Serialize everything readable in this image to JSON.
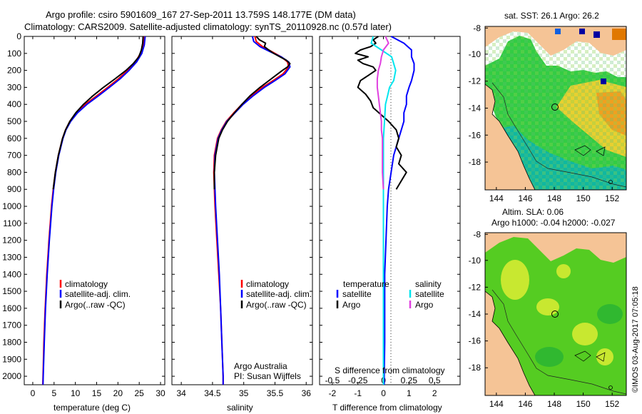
{
  "header": {
    "title_line1": "Argo profile: csiro 5901609_167 27-Sep-2011 13.759S 148.177E (DM data)",
    "title_line2": "Climatology: CARS2009. Satellite-adjusted climatology: synTS_20110928.nc (0.57d later)"
  },
  "colors": {
    "climatology": "#ff0000",
    "satellite": "#0000ff",
    "argo": "#000000",
    "satellite_salinity": "#00e5ee",
    "argo_salinity": "#e040e0",
    "land": "#f5c496",
    "sea_green": "#33cc33"
  },
  "chart_data": [
    {
      "type": "line",
      "id": "temperature",
      "xlabel": "temperature (deg C)",
      "xlim": [
        -2,
        31
      ],
      "xticks": [
        0,
        5,
        10,
        15,
        20,
        25,
        30
      ],
      "ylim": [
        2050,
        0
      ],
      "yticks": [
        0,
        100,
        200,
        300,
        400,
        500,
        600,
        700,
        800,
        900,
        1000,
        1100,
        1200,
        1300,
        1400,
        1500,
        1600,
        1700,
        1800,
        1900,
        2000
      ],
      "legend": [
        "climatology",
        "satellite-adj. clim.",
        "Argo(..raw -QC)"
      ],
      "series": [
        {
          "name": "climatology",
          "color": "#ff0000",
          "depth": [
            0,
            50,
            100,
            150,
            200,
            250,
            300,
            350,
            400,
            450,
            500,
            550,
            600,
            700,
            800,
            900,
            1000,
            1200,
            1400,
            1600,
            1800,
            2000,
            2050
          ],
          "values": [
            26.1,
            25.9,
            25.3,
            24.1,
            22.3,
            20.1,
            17.6,
            15.0,
            12.3,
            10.2,
            8.7,
            7.7,
            7.0,
            6.0,
            5.3,
            4.8,
            4.4,
            3.8,
            3.3,
            2.9,
            2.6,
            2.4,
            2.35
          ]
        },
        {
          "name": "satellite-adj. clim.",
          "color": "#0000ff",
          "depth": [
            0,
            50,
            100,
            150,
            200,
            250,
            300,
            350,
            400,
            450,
            500,
            550,
            600,
            700,
            800,
            900,
            1000,
            1200,
            1400,
            1600,
            1800,
            2000,
            2050
          ],
          "values": [
            26.4,
            26.2,
            25.6,
            24.4,
            22.6,
            20.5,
            18.0,
            15.4,
            12.7,
            10.5,
            8.9,
            7.8,
            7.1,
            6.1,
            5.4,
            4.9,
            4.5,
            3.9,
            3.4,
            3.0,
            2.7,
            2.45,
            2.4
          ]
        },
        {
          "name": "Argo(..raw -QC)",
          "color": "#000000",
          "depth": [
            0,
            40,
            80,
            120,
            160,
            200,
            250,
            300,
            350,
            400,
            450,
            500,
            550,
            600,
            700,
            800,
            900
          ],
          "values": [
            25.9,
            25.8,
            25.5,
            24.9,
            23.6,
            21.9,
            19.3,
            16.6,
            14.1,
            11.9,
            10.1,
            8.7,
            7.7,
            7.0,
            6.0,
            5.3,
            4.8
          ]
        }
      ]
    },
    {
      "type": "line",
      "id": "salinity",
      "xlabel": "salinity",
      "xlim": [
        33.85,
        36.1
      ],
      "xticks": [
        34,
        34.5,
        35,
        35.5,
        36
      ],
      "ylim": [
        2050,
        0
      ],
      "legend": [
        "climatology",
        "satellite-adj. clim.",
        "Argo(..raw -QC)"
      ],
      "annotation": [
        "Argo Australia",
        "PI: Susan Wijffels"
      ],
      "series": [
        {
          "name": "climatology",
          "color": "#ff0000",
          "depth": [
            0,
            30,
            60,
            90,
            120,
            150,
            180,
            220,
            260,
            300,
            350,
            400,
            450,
            500,
            550,
            600,
            700,
            800,
            900,
            1000,
            1200,
            1400,
            1600,
            1800,
            2000,
            2050
          ],
          "values": [
            35.18,
            35.2,
            35.3,
            35.45,
            35.6,
            35.7,
            35.72,
            35.63,
            35.47,
            35.3,
            35.12,
            34.97,
            34.84,
            34.72,
            34.64,
            34.58,
            34.53,
            34.52,
            34.53,
            34.54,
            34.57,
            34.6,
            34.63,
            34.65,
            34.67,
            34.67
          ]
        },
        {
          "name": "satellite-adj. clim.",
          "color": "#0000ff",
          "depth": [
            0,
            30,
            60,
            90,
            120,
            150,
            180,
            220,
            260,
            300,
            350,
            400,
            450,
            500,
            550,
            600,
            700,
            800,
            900,
            1000,
            1200,
            1400,
            1600,
            1800,
            2000,
            2050
          ],
          "values": [
            35.14,
            35.16,
            35.26,
            35.42,
            35.6,
            35.72,
            35.74,
            35.66,
            35.5,
            35.33,
            35.15,
            34.99,
            34.86,
            34.73,
            34.65,
            34.59,
            34.54,
            34.53,
            34.54,
            34.55,
            34.58,
            34.61,
            34.63,
            34.65,
            34.67,
            34.67
          ]
        },
        {
          "name": "Argo(..raw -QC)",
          "color": "#000000",
          "depth": [
            0,
            20,
            40,
            60,
            80,
            100,
            120,
            140,
            160,
            180,
            200,
            250,
            300,
            350,
            400,
            450,
            500,
            550,
            600,
            700,
            800,
            900
          ],
          "values": [
            35.2,
            35.25,
            35.35,
            35.33,
            35.4,
            35.48,
            35.58,
            35.68,
            35.74,
            35.7,
            35.62,
            35.44,
            35.26,
            35.1,
            34.97,
            34.85,
            34.74,
            34.66,
            34.6,
            34.55,
            34.53,
            34.53
          ]
        }
      ]
    },
    {
      "type": "line",
      "id": "differences",
      "xlabel": "T difference from climatology",
      "xlabel_top": "S difference from climatology",
      "xlim": [
        -2.5,
        3
      ],
      "xticks": [
        -2,
        -1,
        0,
        1,
        2
      ],
      "top_ticks": [
        "-0.5",
        "-0.25",
        "0",
        "0.25",
        "0.5"
      ],
      "ylim": [
        2050,
        0
      ],
      "legend_headers": [
        "temperature",
        "salinity"
      ],
      "legend": [
        "satellite",
        "Argo",
        "satellite",
        "Argo"
      ],
      "series": [
        {
          "name": "T satellite",
          "color": "#0000ff",
          "depth": [
            0,
            40,
            80,
            120,
            160,
            200,
            260,
            300,
            350,
            400,
            450,
            500,
            550,
            600,
            700,
            800,
            900,
            1000,
            1200,
            1400,
            1600,
            1800,
            2000,
            2050
          ],
          "values": [
            0.3,
            0.8,
            1.1,
            1.1,
            1.2,
            1.2,
            1.1,
            1.0,
            0.9,
            0.9,
            0.8,
            0.8,
            0.7,
            0.6,
            0.4,
            0.3,
            0.2,
            0.15,
            0.1,
            0.05,
            0.05,
            0.05,
            0.03,
            0.03
          ]
        },
        {
          "name": "T Argo",
          "color": "#000000",
          "depth": [
            0,
            20,
            40,
            60,
            80,
            100,
            120,
            140,
            160,
            180,
            200,
            230,
            260,
            300,
            340,
            380,
            420,
            460,
            500,
            550,
            600,
            650,
            700,
            750,
            800,
            850,
            900
          ],
          "values": [
            -0.2,
            -0.4,
            -0.3,
            -0.5,
            -0.9,
            -1.1,
            -0.6,
            -1.0,
            -0.8,
            -0.4,
            -0.3,
            -0.6,
            -0.9,
            -1.0,
            -0.7,
            -0.5,
            -0.4,
            -0.1,
            0.2,
            0.5,
            0.6,
            0.5,
            0.7,
            0.6,
            0.9,
            0.7,
            0.5
          ]
        },
        {
          "name": "S satellite",
          "color": "#00e5ee",
          "depth": [
            0,
            40,
            80,
            120,
            160,
            200,
            260,
            300,
            350,
            400,
            500,
            600,
            700,
            800,
            1000,
            1200,
            1400,
            1600,
            1800,
            2000,
            2050
          ],
          "values": [
            -0.1,
            -0.12,
            -0.02,
            0.08,
            0.1,
            0.12,
            0.1,
            0.06,
            0.04,
            0.02,
            0.01,
            0.0,
            0.0,
            0.0,
            0.0,
            0.0,
            0.0,
            0.0,
            0.0,
            0.0,
            0.0
          ]
        },
        {
          "name": "S Argo",
          "color": "#e040e0",
          "depth": [
            0,
            40,
            80,
            120,
            160,
            200,
            250,
            300,
            350,
            400,
            450,
            500,
            550,
            600,
            700,
            800,
            900
          ],
          "values": [
            0.02,
            0.05,
            0.0,
            -0.02,
            -0.03,
            -0.05,
            -0.06,
            -0.06,
            -0.05,
            -0.04,
            -0.03,
            -0.02,
            -0.02,
            -0.01,
            -0.01,
            -0.01,
            0.0
          ]
        }
      ]
    }
  ],
  "maps": {
    "sst": {
      "title": "sat. SST: 26.1 Argo: 26.2",
      "lon_ticks": [
        "144",
        "146",
        "148",
        "150",
        "152"
      ],
      "lat_ticks": [
        "-8",
        "-10",
        "-12",
        "-14",
        "-16",
        "-18"
      ]
    },
    "sla": {
      "title_line1": "Altim. SLA: 0.06",
      "title_line2": "Argo h1000: -0.04 h2000: -0.027",
      "lon_ticks": [
        "144",
        "146",
        "148",
        "150",
        "152"
      ],
      "lat_ticks": [
        "-8",
        "-10",
        "-12",
        "-14",
        "-16",
        "-18"
      ]
    }
  },
  "footer": {
    "credit": "©IMOS 03-Aug-2017 07:05:18"
  }
}
